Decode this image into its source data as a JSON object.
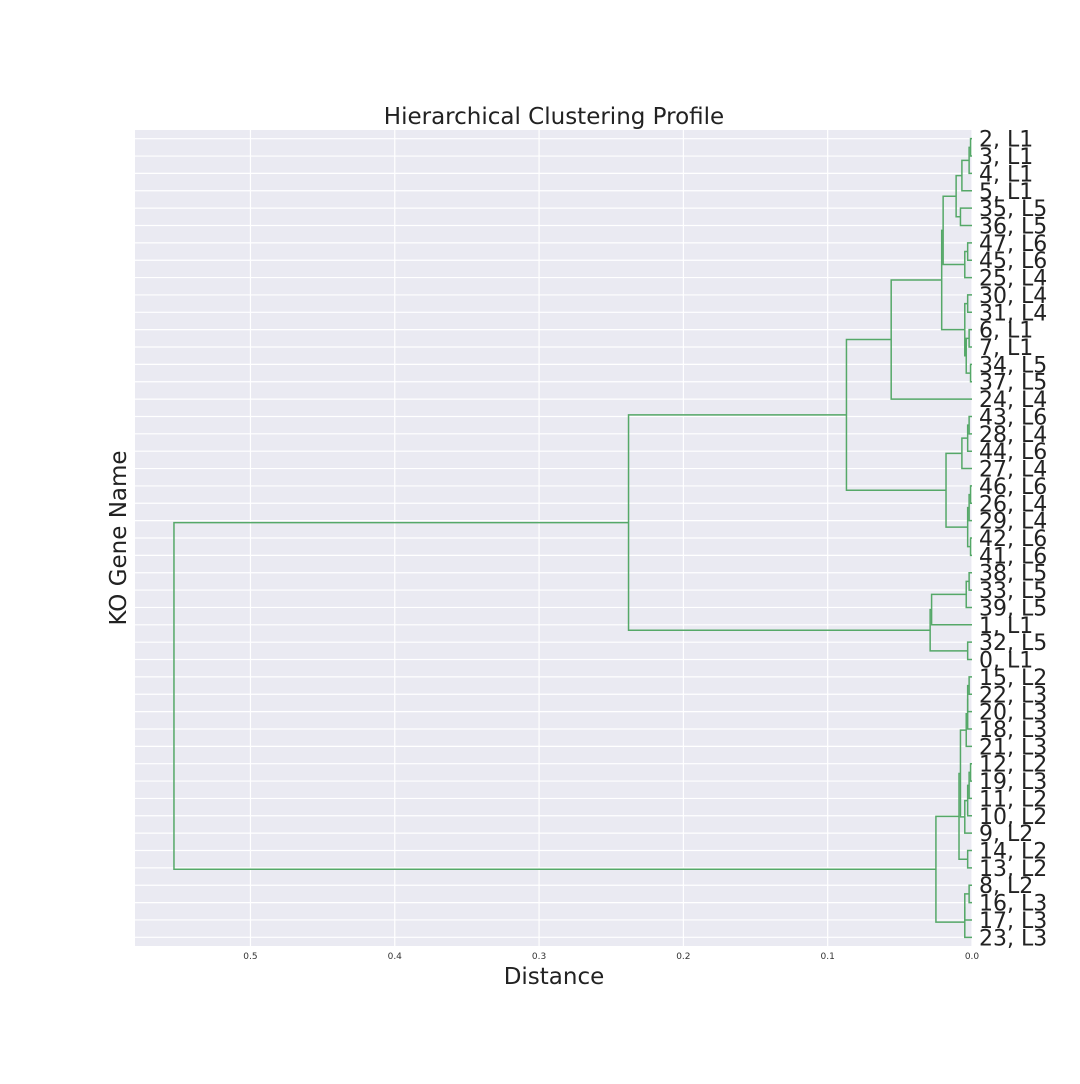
{
  "chart_data": {
    "type": "dendrogram",
    "orientation": "left",
    "title": "Hierarchical Clustering Profile",
    "xlabel": "Distance",
    "ylabel": "KO Gene Name",
    "xlim": [
      0.58,
      0.0
    ],
    "xticks": [
      0.5,
      0.4,
      0.3,
      0.2,
      0.1,
      0.0
    ],
    "xtick_labels": [
      "0.5",
      "0.4",
      "0.3",
      "0.2",
      "0.1",
      "0.0"
    ],
    "grid": true,
    "colors": {
      "background": "#eaeaf2",
      "grid": "#ffffff",
      "link": "#55a868",
      "text": "#222222",
      "tick": "#333333"
    },
    "leaves": [
      "2, L1",
      "3, L1",
      "4, L1",
      "5, L1",
      "35, L5",
      "36, L5",
      "47, L6",
      "45, L6",
      "25, L4",
      "30, L4",
      "31, L4",
      "6, L1",
      "7, L1",
      "34, L5",
      "37, L5",
      "24, L4",
      "43, L6",
      "28, L4",
      "44, L6",
      "27, L4",
      "46, L6",
      "26, L4",
      "29, L4",
      "42, L6",
      "41, L6",
      "38, L5",
      "33, L5",
      "39, L5",
      "1, L1",
      "32, L5",
      "0, L1",
      "15, L2",
      "22, L3",
      "20, L3",
      "18, L3",
      "21, L3",
      "12, L2",
      "19, L3",
      "11, L2",
      "10, L2",
      "9, L2",
      "14, L2",
      "13, L2",
      "8, L2",
      "16, L3",
      "17, L3",
      "23, L3"
    ],
    "merges": [
      {
        "a": "L0",
        "b": "L1",
        "d": 0.001
      },
      {
        "a": "M0",
        "b": "L2",
        "d": 0.002
      },
      {
        "a": "M1",
        "b": "L3",
        "d": 0.007
      },
      {
        "a": "L4",
        "b": "L5",
        "d": 0.008
      },
      {
        "a": "M2",
        "b": "M3",
        "d": 0.011
      },
      {
        "a": "L6",
        "b": "L7",
        "d": 0.003
      },
      {
        "a": "M5",
        "b": "L8",
        "d": 0.005
      },
      {
        "a": "M4",
        "b": "M6",
        "d": 0.02
      },
      {
        "a": "L9",
        "b": "L10",
        "d": 0.003
      },
      {
        "a": "L11",
        "b": "L12",
        "d": 0.002
      },
      {
        "a": "L13",
        "b": "L14",
        "d": 0.001
      },
      {
        "a": "M9",
        "b": "M10",
        "d": 0.004
      },
      {
        "a": "M8",
        "b": "M11",
        "d": 0.005
      },
      {
        "a": "M7",
        "b": "M12",
        "d": 0.021
      },
      {
        "a": "M13",
        "b": "L15",
        "d": 0.056
      },
      {
        "a": "L16",
        "b": "L17",
        "d": 0.002
      },
      {
        "a": "M15",
        "b": "L18",
        "d": 0.003
      },
      {
        "a": "M16",
        "b": "L19",
        "d": 0.007
      },
      {
        "a": "L20",
        "b": "L21",
        "d": 0.001
      },
      {
        "a": "M18",
        "b": "L22",
        "d": 0.002
      },
      {
        "a": "L23",
        "b": "L24",
        "d": 0.001
      },
      {
        "a": "M19",
        "b": "M20",
        "d": 0.003
      },
      {
        "a": "M17",
        "b": "M21",
        "d": 0.018
      },
      {
        "a": "M14",
        "b": "M22",
        "d": 0.087
      },
      {
        "a": "L25",
        "b": "L26",
        "d": 0.002
      },
      {
        "a": "M24",
        "b": "L27",
        "d": 0.004
      },
      {
        "a": "M25",
        "b": "L28",
        "d": 0.028
      },
      {
        "a": "L29",
        "b": "L30",
        "d": 0.003
      },
      {
        "a": "M26",
        "b": "M27",
        "d": 0.029
      },
      {
        "a": "M23",
        "b": "M28",
        "d": 0.238
      },
      {
        "a": "L31",
        "b": "L32",
        "d": 0.002
      },
      {
        "a": "M30",
        "b": "L33",
        "d": 0.003
      },
      {
        "a": "M31",
        "b": "L34",
        "d": 0.003
      },
      {
        "a": "M32",
        "b": "L35",
        "d": 0.004
      },
      {
        "a": "L36",
        "b": "L37",
        "d": 0.001
      },
      {
        "a": "M34",
        "b": "L38",
        "d": 0.002
      },
      {
        "a": "M35",
        "b": "L39",
        "d": 0.003
      },
      {
        "a": "M36",
        "b": "L40",
        "d": 0.005
      },
      {
        "a": "M33",
        "b": "M37",
        "d": 0.008
      },
      {
        "a": "L41",
        "b": "L42",
        "d": 0.003
      },
      {
        "a": "M38",
        "b": "M39",
        "d": 0.009
      },
      {
        "a": "L43",
        "b": "L44",
        "d": 0.002
      },
      {
        "a": "M41",
        "b": "L45",
        "d": 0.005
      },
      {
        "a": "M42",
        "b": "L46",
        "d": 0.005
      },
      {
        "a": "M40",
        "b": "M43",
        "d": 0.025
      },
      {
        "a": "M29",
        "b": "M44",
        "d": 0.553
      }
    ]
  }
}
